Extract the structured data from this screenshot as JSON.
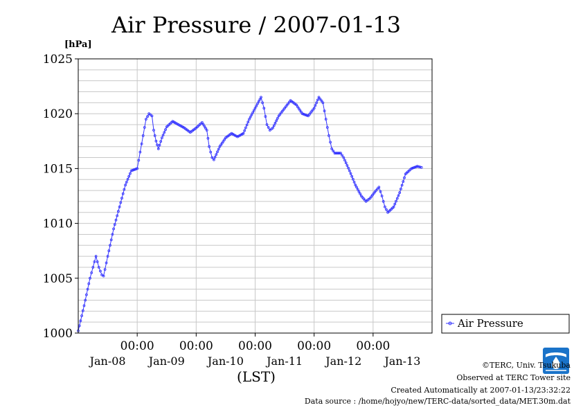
{
  "chart_data": {
    "type": "line",
    "title": "Air Pressure / 2007-01-13",
    "ylabel": "[hPa]",
    "xlabel": "(LST)",
    "ylim": [
      1000,
      1025
    ],
    "yticks": [
      "1000",
      "1005",
      "1010",
      "1015",
      "1020",
      "1025"
    ],
    "xlim_days": [
      0,
      6
    ],
    "time_tick_label": "00:00",
    "date_labels": [
      "Jan-08",
      "Jan-09",
      "Jan-10",
      "Jan-11",
      "Jan-12",
      "Jan-13"
    ],
    "grid": true,
    "legend_position": "right",
    "color": "#3333ff",
    "series": [
      {
        "name": "Air Pressure",
        "points": [
          [
            0.0,
            1000.2
          ],
          [
            0.1,
            1002.5
          ],
          [
            0.2,
            1005.0
          ],
          [
            0.25,
            1006.0
          ],
          [
            0.3,
            1007.0
          ],
          [
            0.35,
            1006.0
          ],
          [
            0.4,
            1005.3
          ],
          [
            0.43,
            1005.2
          ],
          [
            0.5,
            1007.0
          ],
          [
            0.6,
            1009.5
          ],
          [
            0.7,
            1011.5
          ],
          [
            0.8,
            1013.5
          ],
          [
            0.9,
            1014.8
          ],
          [
            1.0,
            1015.0
          ],
          [
            1.05,
            1016.5
          ],
          [
            1.1,
            1018.0
          ],
          [
            1.15,
            1019.5
          ],
          [
            1.2,
            1020.0
          ],
          [
            1.25,
            1019.8
          ],
          [
            1.28,
            1018.5
          ],
          [
            1.32,
            1017.5
          ],
          [
            1.36,
            1016.8
          ],
          [
            1.42,
            1017.8
          ],
          [
            1.5,
            1018.8
          ],
          [
            1.6,
            1019.3
          ],
          [
            1.7,
            1019.0
          ],
          [
            1.8,
            1018.7
          ],
          [
            1.9,
            1018.3
          ],
          [
            2.0,
            1018.7
          ],
          [
            2.1,
            1019.2
          ],
          [
            2.18,
            1018.5
          ],
          [
            2.22,
            1017.0
          ],
          [
            2.27,
            1016.0
          ],
          [
            2.3,
            1015.8
          ],
          [
            2.4,
            1017.0
          ],
          [
            2.5,
            1017.8
          ],
          [
            2.6,
            1018.2
          ],
          [
            2.7,
            1017.9
          ],
          [
            2.8,
            1018.2
          ],
          [
            2.9,
            1019.5
          ],
          [
            3.0,
            1020.5
          ],
          [
            3.1,
            1021.5
          ],
          [
            3.15,
            1020.5
          ],
          [
            3.2,
            1019.0
          ],
          [
            3.25,
            1018.5
          ],
          [
            3.3,
            1018.7
          ],
          [
            3.4,
            1019.8
          ],
          [
            3.5,
            1020.5
          ],
          [
            3.6,
            1021.2
          ],
          [
            3.7,
            1020.8
          ],
          [
            3.8,
            1020.0
          ],
          [
            3.9,
            1019.8
          ],
          [
            4.0,
            1020.5
          ],
          [
            4.08,
            1021.5
          ],
          [
            4.15,
            1021.0
          ],
          [
            4.2,
            1019.5
          ],
          [
            4.25,
            1018.0
          ],
          [
            4.3,
            1016.8
          ],
          [
            4.35,
            1016.4
          ],
          [
            4.45,
            1016.4
          ],
          [
            4.5,
            1016.0
          ],
          [
            4.6,
            1014.8
          ],
          [
            4.7,
            1013.5
          ],
          [
            4.8,
            1012.5
          ],
          [
            4.88,
            1012.0
          ],
          [
            4.95,
            1012.3
          ],
          [
            5.05,
            1013.0
          ],
          [
            5.1,
            1013.3
          ],
          [
            5.15,
            1012.5
          ],
          [
            5.2,
            1011.5
          ],
          [
            5.25,
            1011.0
          ],
          [
            5.35,
            1011.5
          ],
          [
            5.45,
            1012.8
          ],
          [
            5.55,
            1014.5
          ],
          [
            5.65,
            1015.0
          ],
          [
            5.75,
            1015.2
          ],
          [
            5.82,
            1015.1
          ]
        ]
      }
    ]
  },
  "footer": {
    "copyright": "©TERC, Univ. Tsukuba",
    "observed": "Observed at TERC Tower site",
    "created": "Created Automatically at 2007-01-13/23:32:22",
    "source": "Data source : /home/hojyo/new/TERC-data/sorted_data/MET.30m.dat"
  }
}
